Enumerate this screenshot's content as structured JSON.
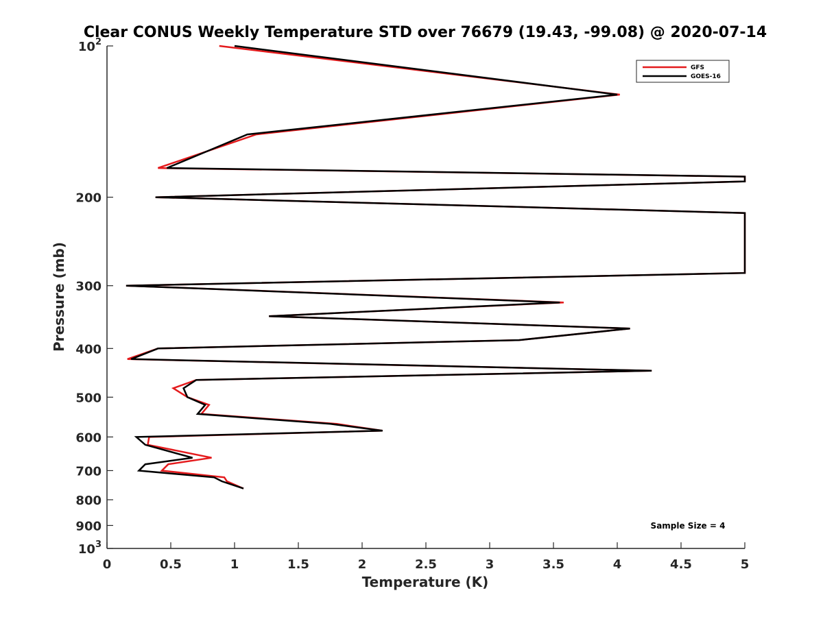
{
  "chart_data": {
    "type": "line",
    "title": "Clear CONUS Weekly Temperature STD over 76679 (19.43, -99.08) @ 2020-07-14",
    "xlabel": "Temperature (K)",
    "ylabel": "Pressure (mb)",
    "xlim": [
      0,
      5
    ],
    "ylim": [
      100,
      1000
    ],
    "y_scale": "log",
    "y_reversed": true,
    "grid": false,
    "legend_position": "top-right",
    "x_ticks": [
      "0",
      "0.5",
      "1",
      "1.5",
      "2",
      "2.5",
      "3",
      "3.5",
      "4",
      "4.5",
      "5"
    ],
    "y_ticks": [
      {
        "value": 100,
        "base": "10",
        "exp": "2"
      },
      {
        "value": 200,
        "label": "200"
      },
      {
        "value": 300,
        "label": "300"
      },
      {
        "value": 400,
        "label": "400"
      },
      {
        "value": 500,
        "label": "500"
      },
      {
        "value": 600,
        "label": "600"
      },
      {
        "value": 700,
        "label": "700"
      },
      {
        "value": 800,
        "label": "800"
      },
      {
        "value": 900,
        "label": "900"
      },
      {
        "value": 1000,
        "base": "10",
        "exp": "3"
      }
    ],
    "annotation": "Sample Size = 4",
    "series": [
      {
        "name": "GFS",
        "color": "#e41a1c",
        "points": [
          [
            0.88,
            100
          ],
          [
            4.02,
            125
          ],
          [
            1.17,
            150
          ],
          [
            0.4,
            175
          ],
          [
            5.0,
            182
          ],
          [
            5.0,
            186
          ],
          [
            0.38,
            200
          ],
          [
            5.0,
            215
          ],
          [
            5.0,
            283
          ],
          [
            0.15,
            300
          ],
          [
            3.58,
            324
          ],
          [
            1.27,
            345
          ],
          [
            4.1,
            365
          ],
          [
            3.23,
            385
          ],
          [
            0.4,
            400
          ],
          [
            0.16,
            420
          ],
          [
            4.27,
            443
          ],
          [
            0.7,
            462
          ],
          [
            0.52,
            480
          ],
          [
            0.63,
            500
          ],
          [
            0.8,
            518
          ],
          [
            0.74,
            540
          ],
          [
            1.8,
            565
          ],
          [
            2.16,
            583
          ],
          [
            0.33,
            600
          ],
          [
            0.32,
            622
          ],
          [
            0.82,
            660
          ],
          [
            0.48,
            680
          ],
          [
            0.43,
            700
          ],
          [
            0.92,
            722
          ],
          [
            0.94,
            735
          ],
          [
            1.07,
            760
          ]
        ]
      },
      {
        "name": "GOES-16",
        "color": "#000000",
        "points": [
          [
            1.0,
            100
          ],
          [
            4.0,
            125
          ],
          [
            1.1,
            150
          ],
          [
            0.47,
            175
          ],
          [
            5.0,
            182
          ],
          [
            5.0,
            186
          ],
          [
            0.38,
            200
          ],
          [
            5.0,
            215
          ],
          [
            5.0,
            283
          ],
          [
            0.15,
            300
          ],
          [
            3.55,
            324
          ],
          [
            1.27,
            345
          ],
          [
            4.1,
            365
          ],
          [
            3.23,
            385
          ],
          [
            0.4,
            400
          ],
          [
            0.19,
            420
          ],
          [
            4.27,
            443
          ],
          [
            0.7,
            462
          ],
          [
            0.6,
            480
          ],
          [
            0.63,
            500
          ],
          [
            0.77,
            518
          ],
          [
            0.71,
            540
          ],
          [
            1.75,
            565
          ],
          [
            2.16,
            583
          ],
          [
            0.23,
            600
          ],
          [
            0.3,
            622
          ],
          [
            0.67,
            660
          ],
          [
            0.3,
            680
          ],
          [
            0.25,
            700
          ],
          [
            0.84,
            722
          ],
          [
            0.9,
            735
          ],
          [
            1.07,
            760
          ]
        ]
      }
    ]
  }
}
